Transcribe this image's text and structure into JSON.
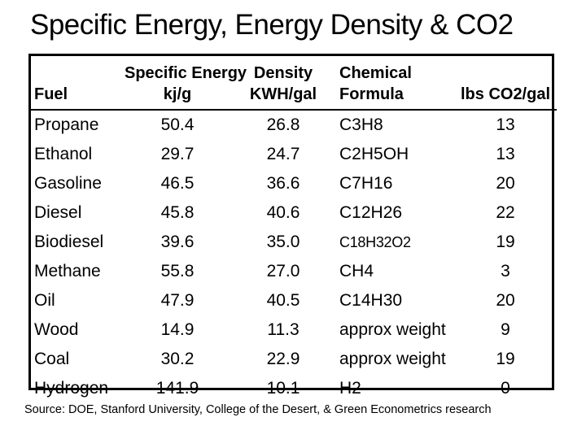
{
  "title": "Specific Energy, Energy Density & CO2",
  "source_note": "Source: DOE, Stanford University, College of the Desert, & Green Econometrics research",
  "colors": {
    "text": "#000000",
    "background": "#ffffff",
    "border": "#000000"
  },
  "table": {
    "header": {
      "columns": [
        {
          "line1": "",
          "line2": "Fuel"
        },
        {
          "line1": "Specific Energy",
          "line2": "kj/g"
        },
        {
          "line1": "Density",
          "line2": "KWH/gal"
        },
        {
          "line1": "Chemical",
          "line2": "Formula"
        },
        {
          "line1": "",
          "line2": "lbs CO2/gal"
        }
      ]
    },
    "rows": [
      [
        "Propane",
        "50.4",
        "26.8",
        "C3H8",
        "13"
      ],
      [
        "Ethanol",
        "29.7",
        "24.7",
        "C2H5OH",
        "13"
      ],
      [
        "Gasoline",
        "46.5",
        "36.6",
        "C7H16",
        "20"
      ],
      [
        "Diesel",
        "45.8",
        "40.6",
        "C12H26",
        "22"
      ],
      [
        "Biodiesel",
        "39.6",
        "35.0",
        "C18H32O2",
        "19"
      ],
      [
        "Methane",
        "55.8",
        "27.0",
        "CH4",
        "3"
      ],
      [
        "Oil",
        "47.9",
        "40.5",
        "C14H30",
        "20"
      ],
      [
        "Wood",
        "14.9",
        "11.3",
        "approx weight",
        "9"
      ],
      [
        "Coal",
        "30.2",
        "22.9",
        "approx weight",
        "19"
      ],
      [
        "Hydrogen",
        "141.9",
        "10.1",
        "H2",
        "0"
      ]
    ]
  },
  "chart_data": {
    "type": "table",
    "title": "Specific Energy, Energy Density & CO2",
    "columns": [
      "Fuel",
      "Specific Energy kj/g",
      "Density KWH/gal",
      "Chemical Formula",
      "lbs CO2/gal"
    ],
    "fuels": [
      "Propane",
      "Ethanol",
      "Gasoline",
      "Diesel",
      "Biodiesel",
      "Methane",
      "Oil",
      "Wood",
      "Coal",
      "Hydrogen"
    ],
    "series": [
      {
        "name": "Specific Energy kj/g",
        "values": [
          50.4,
          29.7,
          46.5,
          45.8,
          39.6,
          55.8,
          47.9,
          14.9,
          30.2,
          141.9
        ]
      },
      {
        "name": "Density KWH/gal",
        "values": [
          26.8,
          24.7,
          36.6,
          40.6,
          35.0,
          27.0,
          40.5,
          11.3,
          22.9,
          10.1
        ]
      },
      {
        "name": "lbs CO2/gal",
        "values": [
          13,
          13,
          20,
          22,
          19,
          3,
          20,
          9,
          19,
          0
        ]
      }
    ],
    "chemical_formulas": [
      "C3H8",
      "C2H5OH",
      "C7H16",
      "C12H26",
      "C18H32O2",
      "CH4",
      "C14H30",
      "approx weight",
      "approx weight",
      "H2"
    ],
    "source": "Source: DOE, Stanford University, College of the Desert, & Green Econometrics research"
  }
}
